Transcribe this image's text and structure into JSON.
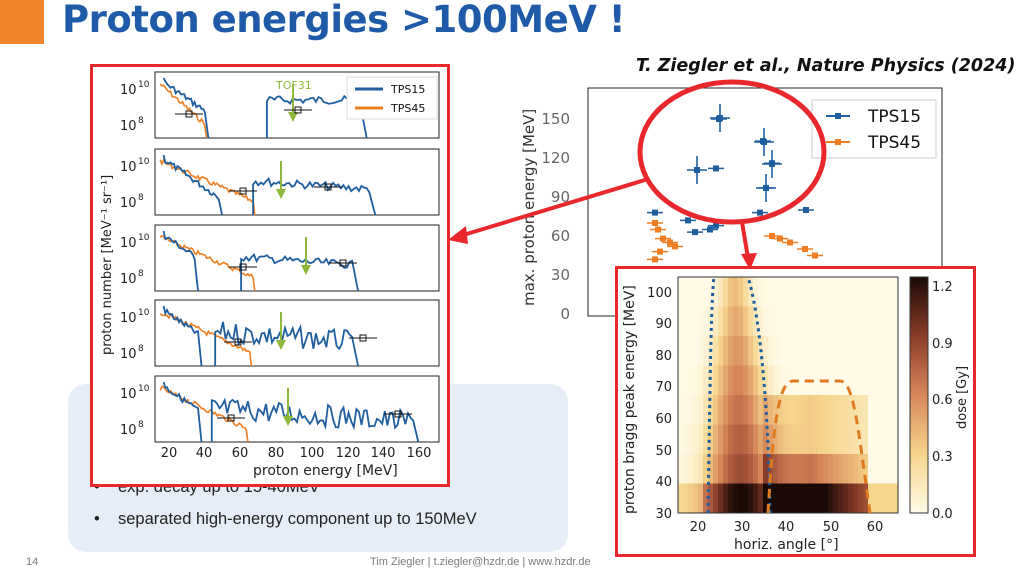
{
  "slide": {
    "title": "Proton energies >100MeV !",
    "citation": "T. Ziegler et al., Nature Physics (2024)",
    "bullets": [
      {
        "text": "exp. decay up to 15-40MeV"
      },
      {
        "text": "separated high-energy component up to 150MeV"
      }
    ],
    "slide_number": "14",
    "footer": "Tim Ziegler | t.ziegler@hzdr.de | www.hzdr.de",
    "colors": {
      "title": "#1e5aa8",
      "accent": "#f0842b",
      "highlight": "#e8282b",
      "panel": "#e6edf6"
    }
  },
  "chart_data": [
    {
      "type": "line",
      "ylabel": "proton number [MeV⁻¹ sr⁻¹]",
      "xlabel": "proton energy [MeV]",
      "x_ticks": [
        "20",
        "40",
        "60",
        "80",
        "100",
        "120",
        "140",
        "160"
      ],
      "y_ticks": [
        "10",
        "10"
      ],
      "y_tick_exponents": [
        "10",
        "8"
      ],
      "annotation": "TOF31",
      "legend": [
        "TPS15",
        "TPS45"
      ],
      "series_colors": {
        "TPS15": "#1f5fa0",
        "TPS45": "#ef7d22"
      },
      "panels": 5,
      "legend_position": "top-right of first panel"
    },
    {
      "type": "scatter",
      "ylabel": "max. proton energy [MeV]",
      "y_ticks": [
        "0",
        "30",
        "60",
        "90",
        "120",
        "150"
      ],
      "legend": [
        "TPS15",
        "TPS45"
      ],
      "legend_position": "top-right",
      "series": [
        {
          "name": "TPS15",
          "values": [
            112,
            150,
            133,
            116,
            97,
            78,
            72,
            68,
            65,
            63,
            78,
            80
          ]
        },
        {
          "name": "TPS45",
          "values": [
            70,
            65,
            58,
            55,
            52,
            48,
            42,
            60,
            58,
            55,
            50,
            45
          ]
        }
      ]
    },
    {
      "type": "heatmap",
      "xlabel": "horiz. angle [°]",
      "ylabel": "proton bragg peak energy [MeV]",
      "x_ticks": [
        "20",
        "30",
        "40",
        "50",
        "60"
      ],
      "y_ticks": [
        "30",
        "40",
        "50",
        "60",
        "70",
        "80",
        "90",
        "100"
      ],
      "colorbar_label": "dose [Gy]",
      "colorbar_ticks": [
        "0.0",
        "0.3",
        "0.6",
        "0.9",
        "1.2"
      ]
    }
  ]
}
